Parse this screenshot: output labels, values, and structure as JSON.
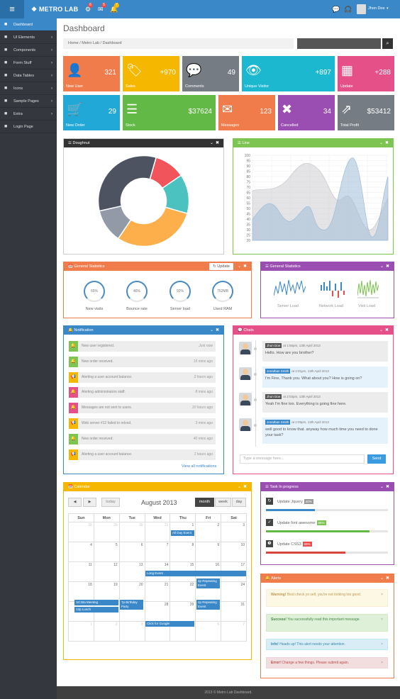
{
  "brand": "METRO LAB",
  "topbar": {
    "badges": [
      "6",
      "5",
      "7"
    ],
    "user": "Jhon Doe"
  },
  "sidebar": [
    {
      "label": "Dashboard",
      "icon": "home-icon",
      "active": true,
      "chev": ""
    },
    {
      "label": "UI Elements",
      "icon": "ui-icon",
      "chev": "›"
    },
    {
      "label": "Components",
      "icon": "cogs-icon",
      "chev": "›"
    },
    {
      "label": "Form Stuff",
      "icon": "form-icon",
      "chev": "›"
    },
    {
      "label": "Data Tables",
      "icon": "table-icon",
      "chev": "›"
    },
    {
      "label": "Icons",
      "icon": "icons-icon",
      "chev": "›"
    },
    {
      "label": "Sample Pages",
      "icon": "pages-icon",
      "chev": "›"
    },
    {
      "label": "Extra",
      "icon": "extra-icon",
      "chev": "›"
    },
    {
      "label": "Login Page",
      "icon": "user-icon",
      "chev": ""
    }
  ],
  "page": {
    "title": "Dashboard",
    "crumbs": "Home  /  Metro Lab  /  Dashboard"
  },
  "tiles": [
    {
      "label": "New User",
      "value": "321",
      "icon": "user-icon",
      "glyph": "👤",
      "color": "#f07c4c"
    },
    {
      "label": "Sales",
      "value": "+970",
      "icon": "tags-icon",
      "glyph": "🏷",
      "color": "#f5b700"
    },
    {
      "label": "Comments",
      "value": "49",
      "icon": "comments-icon",
      "glyph": "💬",
      "color": "#757c84"
    },
    {
      "label": "Unique Visitor",
      "value": "+897",
      "icon": "eye-icon",
      "glyph": "👁",
      "color": "#1cb8d0"
    },
    {
      "label": "Update",
      "value": "+288",
      "icon": "bar-chart-icon",
      "glyph": "▦",
      "color": "#e45087"
    },
    {
      "label": "New Order",
      "value": "29",
      "icon": "cart-icon",
      "glyph": "🛒",
      "color": "#22a8d6"
    },
    {
      "label": "Stock",
      "value": "$37624",
      "icon": "database-icon",
      "glyph": "☰",
      "color": "#62b946"
    },
    {
      "label": "Messages",
      "value": "123",
      "icon": "envelope-icon",
      "glyph": "✉",
      "color": "#f07c4c"
    },
    {
      "label": "Cancelled",
      "value": "34",
      "icon": "cancel-icon",
      "glyph": "✖",
      "color": "#9b4eb1"
    },
    {
      "label": "Total Profit",
      "value": "$53412",
      "icon": "external-link-icon",
      "glyph": "⇗",
      "color": "#757c84"
    }
  ],
  "panels": {
    "doughnut": {
      "title": "Doughnut",
      "color": "#333"
    },
    "line": {
      "title": "Line",
      "color": "#7dc452"
    },
    "gen1": {
      "title": "General Statistics",
      "color": "#f07c4c",
      "button": "Update"
    },
    "gen2": {
      "title": "General Statistics",
      "color": "#9b4eb1"
    },
    "notification": {
      "title": "Notification",
      "color": "#3a88c8",
      "link": "View all notifications"
    },
    "chats": {
      "title": "Chats",
      "color": "#e45087",
      "placeholder": "Type a message here...",
      "send": "Send"
    },
    "calendar": {
      "title": "Calendar",
      "color": "#f5b700"
    },
    "tasks": {
      "title": "Task In progress",
      "color": "#9b4eb1"
    },
    "alerts": {
      "title": "Alerts",
      "color": "#f07c4c"
    }
  },
  "doughnut": {
    "slices": [
      {
        "value": 11,
        "color": "#f2545b"
      },
      {
        "value": 14,
        "color": "#4bc2c0"
      },
      {
        "value": 30,
        "color": "#fcaf4b"
      },
      {
        "value": 12,
        "color": "#929aa8"
      },
      {
        "value": 33,
        "color": "#4d5360"
      }
    ]
  },
  "line_chart": {
    "yticks": [
      "100",
      "95",
      "90",
      "85",
      "80",
      "75",
      "70",
      "65",
      "60",
      "55",
      "50",
      "45",
      "40",
      "35",
      "30",
      "25",
      "20"
    ]
  },
  "stats": [
    {
      "value": "65%",
      "label": "New visits"
    },
    {
      "value": "46%",
      "label": "Bounce rate"
    },
    {
      "value": "92%",
      "label": "Server load"
    },
    {
      "value": "752MB",
      "label": "Used RAM"
    }
  ],
  "sparks": [
    "Server Load",
    "Network Load",
    "Visit Load"
  ],
  "notifications": [
    {
      "text": "New user registered.",
      "time": "Just now",
      "icon": "bell-icon",
      "glyph": "🔔",
      "color": "#7dc452"
    },
    {
      "text": "New order received.",
      "time": "15 mins ago",
      "icon": "bell-icon",
      "glyph": "🔔",
      "color": "#7dc452"
    },
    {
      "text": "Alerting a user account balance.",
      "time": "2 hours ago",
      "icon": "bullhorn-icon",
      "glyph": "📢",
      "color": "#f5b700"
    },
    {
      "text": "Alerting administrators staff.",
      "time": "8 mins ago",
      "icon": "bell-icon",
      "glyph": "🔔",
      "color": "#e45087"
    },
    {
      "text": "Messages are not sent to users.",
      "time": "10 hours ago",
      "icon": "bell-icon",
      "glyph": "🔔",
      "color": "#e45087"
    },
    {
      "text": "Web server #12 failed to relosd.",
      "time": "3 mins ago",
      "icon": "bullhorn-icon",
      "glyph": "📢",
      "color": "#f5b700"
    },
    {
      "text": "New order received.",
      "time": "40 mins ago",
      "icon": "bell-icon",
      "glyph": "🔔",
      "color": "#7dc452"
    },
    {
      "text": "Alerting a user account balance.",
      "time": "1 hours ago",
      "icon": "bullhorn-icon",
      "glyph": "📢",
      "color": "#f5b700"
    }
  ],
  "chats": [
    {
      "who": "Jhon Doe",
      "when": "at 1:55pm, 13th April 2013",
      "text": "Hello. How are you brother?",
      "whocolor": "#555",
      "bg": "#ececec"
    },
    {
      "who": "Jonathan Smith",
      "when": "at 2:01pm, 13th April 2013",
      "text": "I'm Fine, Thank you. What about you? How is going on?",
      "whocolor": "#3a88c8",
      "bg": "#e6f2fb"
    },
    {
      "who": "Jhon Doe",
      "when": "at 2:03pm, 13th April 2013",
      "text": "Yeah I'm fine too. Everything is going fine here.",
      "whocolor": "#555",
      "bg": "#ececec"
    },
    {
      "who": "Jonathan Smith",
      "when": "at 2:05pm, 13th April 2013",
      "text": "well good to know that. anyway how much time you need to done your task?",
      "whocolor": "#3a88c8",
      "bg": "#e6f2fb"
    }
  ],
  "calendar": {
    "prev": "◀",
    "next": "▶",
    "today": "today",
    "title": "August 2013",
    "views": [
      "month",
      "week",
      "day"
    ],
    "days": [
      "Sun",
      "Mon",
      "Tue",
      "Wed",
      "Thu",
      "Fri",
      "Sat"
    ],
    "weeks": [
      [
        "28",
        "29",
        "30",
        "31",
        "1",
        "2",
        "3"
      ],
      [
        "4",
        "5",
        "6",
        "7",
        "8",
        "9",
        "10"
      ],
      [
        "11",
        "12",
        "13",
        "14",
        "15",
        "16",
        "17"
      ],
      [
        "18",
        "19",
        "20",
        "21",
        "22",
        "23",
        "24"
      ],
      [
        "25",
        "26",
        "27",
        "28",
        "29",
        "30",
        "31"
      ],
      [
        "1",
        "2",
        "3",
        "4",
        "5",
        "6",
        "7"
      ]
    ],
    "events": [
      "All Day Event",
      "Long Event",
      "4p Repeating Event",
      "10:30a Meeting",
      "12p Lunch",
      "7p Birthday Party",
      "4p Repeating Event",
      "Click for Google"
    ]
  },
  "tasks": [
    {
      "name": "Update Jquery",
      "pct": "40%",
      "icon": "refresh-icon",
      "glyph": "↻",
      "color": "#9a9a9a",
      "fill": 0.4,
      "fillcolor": "#3a88c8"
    },
    {
      "name": "Update font awesome",
      "pct": "85%",
      "icon": "check-icon",
      "glyph": "✓",
      "color": "#7dc452",
      "fill": 0.85,
      "fillcolor": "#62b946"
    },
    {
      "name": "Update CSS3",
      "pct": "65%",
      "icon": "css3-icon",
      "glyph": "❸",
      "color": "#e84e4e",
      "fill": 0.65,
      "fillcolor": "#d6483f"
    }
  ],
  "alerts": [
    {
      "strong": "Warning!",
      "text": " Best check yo self, you're not looking too good.",
      "bg": "#fcf8e3",
      "border": "#fbeed5",
      "color": "#c09853"
    },
    {
      "strong": "Success!",
      "text": " You successfully read this important message.",
      "bg": "#dff0d8",
      "border": "#d6e9c6",
      "color": "#468847"
    },
    {
      "strong": "Info!",
      "text": " Heads up! This alert needs your attention.",
      "bg": "#d9edf7",
      "border": "#bce8f1",
      "color": "#3a87ad"
    },
    {
      "strong": "Error!",
      "text": " Change a few things. Please submit again.",
      "bg": "#f2dede",
      "border": "#eed3d7",
      "color": "#b94a48"
    }
  ],
  "footer": "2013 © Metro Lab Dashboard."
}
